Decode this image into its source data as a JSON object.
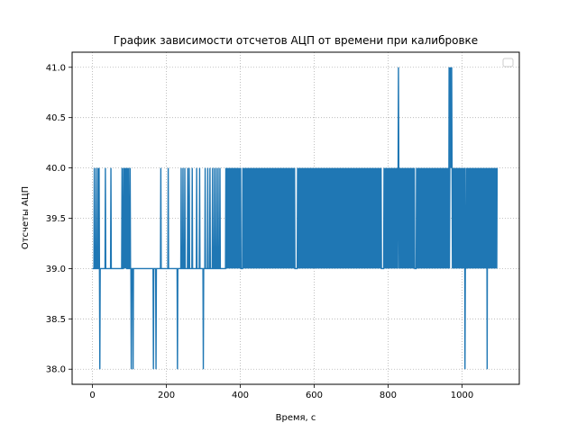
{
  "chart_data": {
    "type": "line",
    "title": "График зависимости отсчетов АЦП от времени при калибровке",
    "xlabel": "Время, с",
    "ylabel": "Отсчеты АЦП",
    "xlim": [
      -55,
      1155
    ],
    "ylim": [
      37.85,
      41.15
    ],
    "xticks": [
      0,
      200,
      400,
      600,
      800,
      1000
    ],
    "xtick_labels": [
      "0",
      "200",
      "400",
      "600",
      "800",
      "1000"
    ],
    "yticks": [
      38.0,
      38.5,
      39.0,
      39.5,
      40.0,
      40.5,
      41.0
    ],
    "ytick_labels": [
      "38.0",
      "38.5",
      "39.0",
      "39.5",
      "40.0",
      "40.5",
      "41.0"
    ],
    "grid": true,
    "grid_style": "dotted",
    "legend": "top-right, empty",
    "colors": {
      "series": "#1f77b4",
      "grid": "#b0b0b0"
    },
    "series": [
      {
        "description": "ADC counts sampled over ~1100 s; baseline 39 with frequent jumps to 40 (dense from ~360 s onward), dips to 38 and spikes to 41",
        "x_range": [
          0,
          1095
        ],
        "baseline": 39,
        "spikes_to_40": [
          5,
          10,
          15,
          18,
          35,
          50,
          80,
          84,
          86,
          88,
          90,
          92,
          95,
          98,
          102,
          185,
          205,
          240,
          245,
          250,
          258,
          262,
          270,
          282,
          290,
          300,
          305,
          312,
          318,
          325,
          330,
          335,
          340,
          345
        ],
        "dense_40_region": [
          360,
          1095
        ],
        "gaps_in_dense_region": [
          [
            402,
            406
          ],
          [
            548,
            553
          ],
          [
            783,
            787
          ],
          [
            872,
            876
          ],
          [
            1008,
            1010
          ]
        ],
        "dips_to_38": [
          20,
          105,
          110,
          165,
          172,
          230,
          300,
          1008,
          1068
        ],
        "spikes_to_41": [
          828,
          965,
          968,
          970,
          972
        ]
      }
    ]
  }
}
